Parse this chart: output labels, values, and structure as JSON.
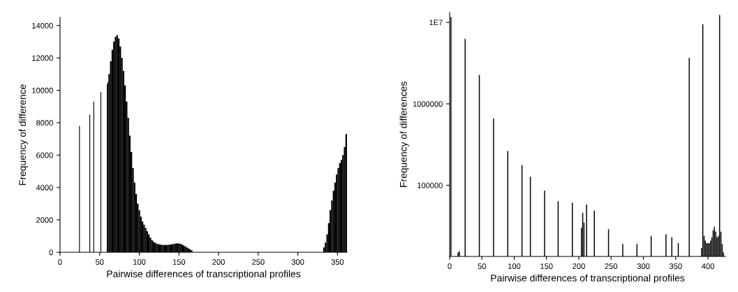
{
  "chart_data": [
    {
      "type": "histogram",
      "xlabel": "Pairwise differences of transcriptional profiles",
      "ylabel": "Frequency of difference",
      "color": "#000000",
      "bins": [
        24,
        25,
        37,
        38,
        42,
        43,
        51,
        52,
        59,
        60,
        61,
        63,
        65,
        67,
        69,
        71,
        73,
        75,
        77,
        79,
        81,
        83,
        85,
        87,
        89,
        91,
        93,
        95,
        97,
        99,
        101,
        103,
        105,
        107,
        109,
        111,
        113,
        115,
        117,
        119,
        121,
        123,
        125,
        127,
        129,
        131,
        133,
        135,
        137,
        139,
        141,
        143,
        145,
        147,
        149,
        151,
        153,
        155,
        157,
        159,
        161,
        163,
        165,
        167,
        332,
        334,
        336,
        338,
        340,
        342,
        344,
        346,
        348,
        350,
        352,
        354,
        356,
        358,
        360,
        362
      ],
      "values": [
        7800,
        0,
        8500,
        0,
        9300,
        0,
        9900,
        0,
        10400,
        10500,
        11000,
        11800,
        12500,
        13000,
        13300,
        13400,
        13200,
        12700,
        12000,
        11200,
        10300,
        9300,
        8300,
        7200,
        6200,
        5200,
        4300,
        3600,
        3000,
        2600,
        2200,
        1900,
        1700,
        1500,
        1300,
        1100,
        900,
        750,
        650,
        580,
        530,
        500,
        480,
        460,
        450,
        450,
        450,
        460,
        470,
        480,
        500,
        520,
        540,
        550,
        540,
        520,
        480,
        420,
        360,
        300,
        240,
        180,
        130,
        0,
        300,
        600,
        1100,
        1800,
        2600,
        3200,
        3800,
        4300,
        4800,
        5200,
        5500,
        5700,
        6000,
        6500,
        7300
      ],
      "xlim": [
        0,
        362
      ],
      "xticks": [
        0,
        50,
        100,
        150,
        200,
        250,
        300,
        350
      ],
      "ylim": [
        0,
        14500
      ],
      "yticks": [
        0,
        2000,
        4000,
        6000,
        8000,
        10000,
        12000,
        14000
      ],
      "grid": false,
      "legend": false
    },
    {
      "type": "bar",
      "xlabel": "Pairwise differences of transcriptional profiles",
      "ylabel": "Frequency of differences",
      "color": "#000000",
      "log": "y",
      "x": [
        2,
        13,
        15,
        24,
        46,
        68,
        90,
        112,
        125,
        147,
        168,
        190,
        204,
        206,
        208,
        212,
        224,
        246,
        268,
        290,
        312,
        335,
        344,
        354,
        371,
        390,
        392,
        394,
        396,
        398,
        400,
        402,
        404,
        406,
        408,
        410,
        412,
        414,
        416,
        418,
        420,
        422,
        424
      ],
      "values": [
        11600000,
        15000,
        15500,
        6270000,
        2270000,
        660000,
        263000,
        177000,
        128000,
        86000,
        64000,
        61000,
        30000,
        46000,
        35000,
        58000,
        49000,
        29000,
        19000,
        19000,
        24000,
        25000,
        23000,
        19500,
        3650000,
        17000,
        9500000,
        24000,
        21000,
        19500,
        19500,
        19500,
        21000,
        23000,
        28000,
        31000,
        27000,
        23000,
        24000,
        12300000,
        27000,
        19000,
        15000
      ],
      "xlim": [
        0,
        427
      ],
      "xticks": [
        0,
        50,
        100,
        150,
        200,
        250,
        300,
        350,
        400
      ],
      "ylim": [
        13400,
        13200000
      ],
      "yticks": [
        100000,
        1000000,
        {
          "value": 10000000,
          "label": "1E7"
        }
      ],
      "grid": false,
      "legend": false
    }
  ]
}
